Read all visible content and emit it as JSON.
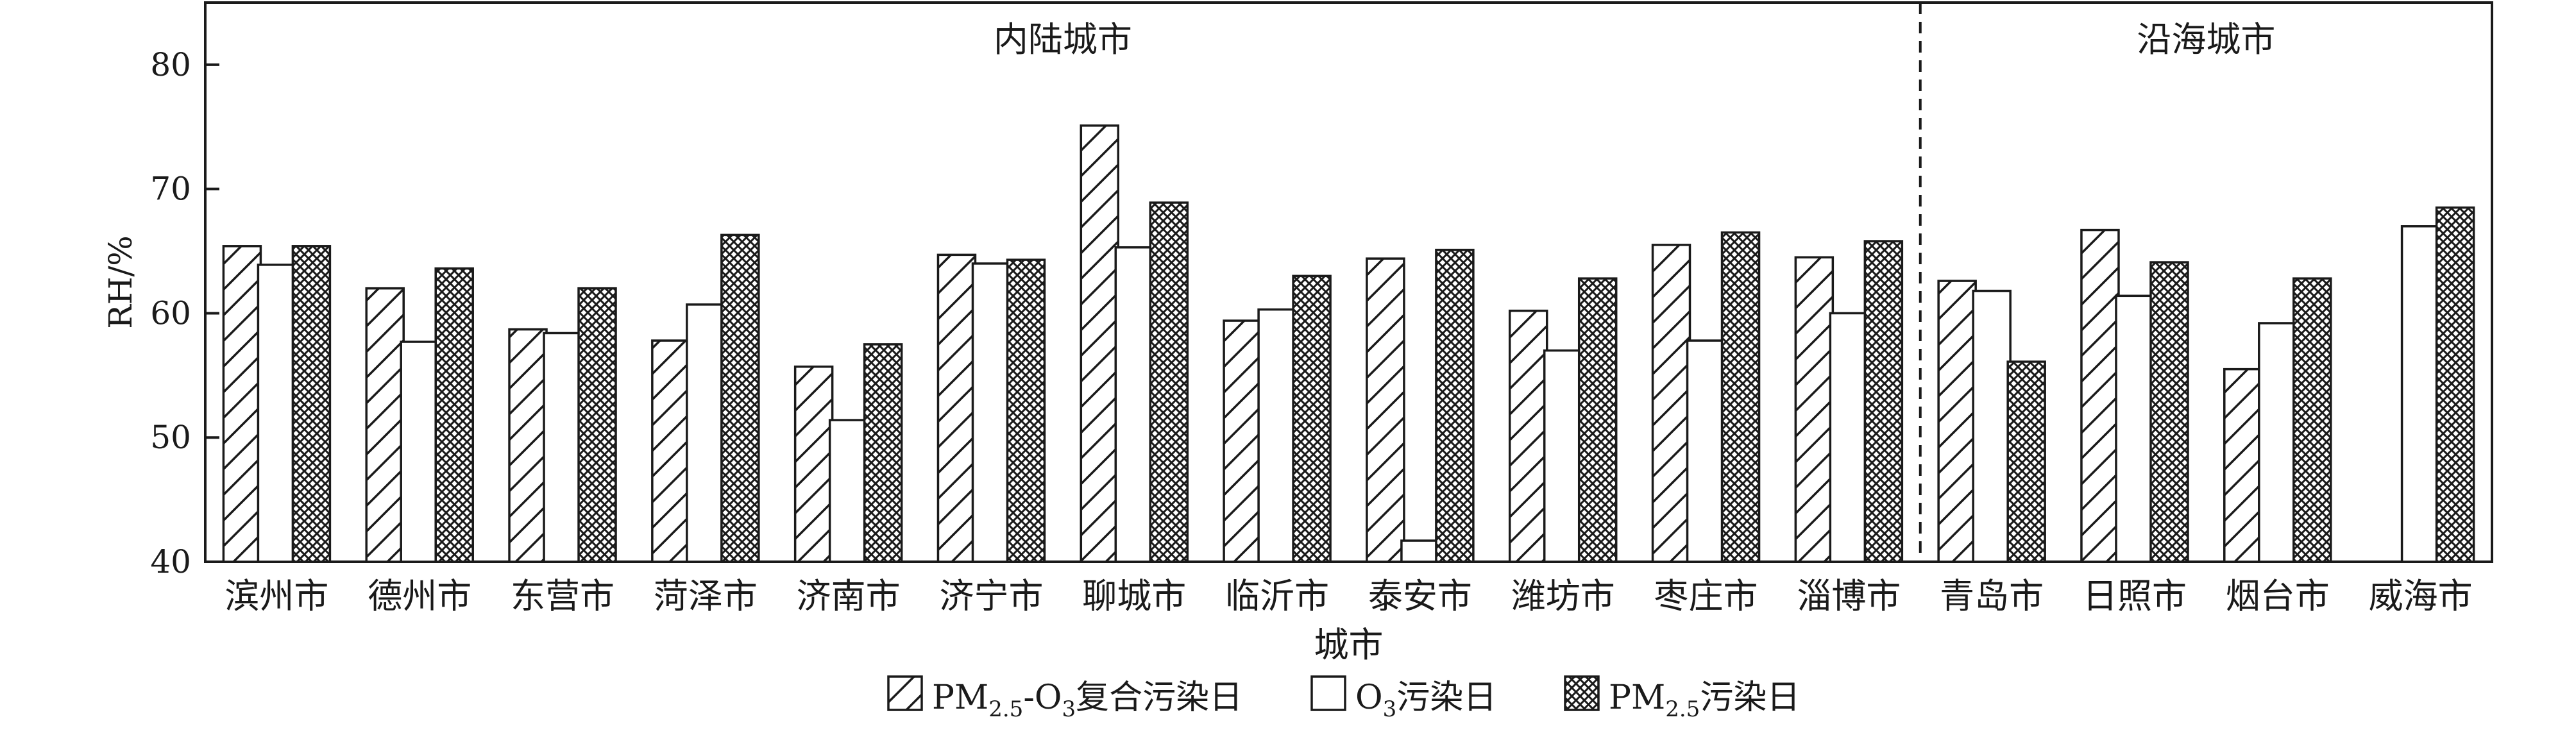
{
  "chart_data": {
    "type": "bar",
    "xlabel": "城市",
    "ylabel": "RH/%",
    "ylim": [
      40,
      85
    ],
    "yticks": [
      40,
      50,
      60,
      70,
      80
    ],
    "categories": [
      "滨州市",
      "德州市",
      "东营市",
      "菏泽市",
      "济南市",
      "济宁市",
      "聊城市",
      "临沂市",
      "泰安市",
      "潍坊市",
      "枣庄市",
      "淄博市",
      "青岛市",
      "日照市",
      "烟台市",
      "威海市"
    ],
    "series": [
      {
        "name": "PM2.5-O3复合污染日",
        "pattern": "hatch",
        "values": [
          65.4,
          62.0,
          58.7,
          57.8,
          55.7,
          64.7,
          75.1,
          59.4,
          64.4,
          60.2,
          65.5,
          64.5,
          62.6,
          66.7,
          55.5,
          null
        ]
      },
      {
        "name": "O3污染日",
        "pattern": "empty",
        "values": [
          63.9,
          57.7,
          58.4,
          60.7,
          51.4,
          64.0,
          65.3,
          60.3,
          41.7,
          57.0,
          57.8,
          60.0,
          61.8,
          61.4,
          59.2,
          67.0
        ]
      },
      {
        "name": "PM2.5污染日",
        "pattern": "crosshatch",
        "values": [
          65.4,
          63.6,
          62.0,
          66.3,
          57.5,
          64.3,
          68.9,
          63.0,
          65.1,
          62.8,
          66.5,
          65.8,
          56.1,
          64.1,
          62.8,
          68.5
        ]
      }
    ],
    "groups": [
      {
        "label": "内陆城市",
        "count": 12
      },
      {
        "label": "沿海城市",
        "count": 4
      }
    ],
    "legend_position": "bottom",
    "grid": false
  },
  "legend": [
    {
      "main": "PM",
      "sub": "2.5",
      "main2": "-O",
      "sub2": "3",
      "tail": "复合污染日"
    },
    {
      "main": "O",
      "sub": "3",
      "tail": "污染日"
    },
    {
      "main": "PM",
      "sub": "2.5",
      "tail": "污染日"
    }
  ]
}
